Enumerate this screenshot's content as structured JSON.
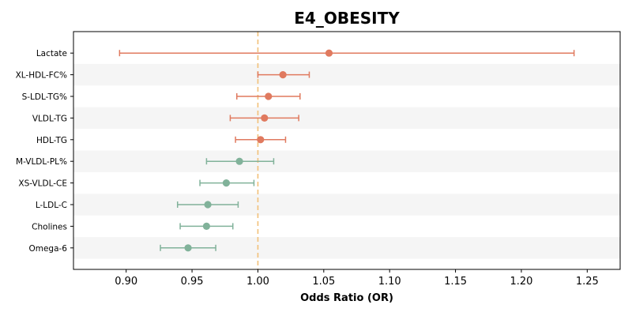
{
  "chart_data": {
    "type": "scatter",
    "subtype": "forest-plot",
    "title": "E4_OBESITY",
    "xlabel": "Odds Ratio (OR)",
    "xlim": [
      0.86,
      1.275
    ],
    "xticks": [
      0.9,
      0.95,
      1.0,
      1.05,
      1.1,
      1.15,
      1.2,
      1.25
    ],
    "xtick_labels": [
      "0.90",
      "0.95",
      "1.00",
      "1.05",
      "1.10",
      "1.15",
      "1.20",
      "1.25"
    ],
    "reference_line": 1.0,
    "grid": false,
    "colors": {
      "increased": "#e07a5f",
      "decreased": "#81b29a",
      "reference": "#f2c078",
      "band": "#f5f5f5"
    },
    "rows": [
      {
        "label": "Lactate",
        "or": 1.054,
        "lo": 0.895,
        "hi": 1.24,
        "direction": "increased"
      },
      {
        "label": "XL-HDL-FC%",
        "or": 1.019,
        "lo": 1.0,
        "hi": 1.039,
        "direction": "increased"
      },
      {
        "label": "S-LDL-TG%",
        "or": 1.008,
        "lo": 0.984,
        "hi": 1.032,
        "direction": "increased"
      },
      {
        "label": "VLDL-TG",
        "or": 1.005,
        "lo": 0.979,
        "hi": 1.031,
        "direction": "increased"
      },
      {
        "label": "HDL-TG",
        "or": 1.002,
        "lo": 0.983,
        "hi": 1.021,
        "direction": "increased"
      },
      {
        "label": "M-VLDL-PL%",
        "or": 0.986,
        "lo": 0.961,
        "hi": 1.012,
        "direction": "decreased"
      },
      {
        "label": "XS-VLDL-CE",
        "or": 0.976,
        "lo": 0.956,
        "hi": 0.997,
        "direction": "decreased"
      },
      {
        "label": "L-LDL-C",
        "or": 0.962,
        "lo": 0.939,
        "hi": 0.985,
        "direction": "decreased"
      },
      {
        "label": "Cholines",
        "or": 0.961,
        "lo": 0.941,
        "hi": 0.981,
        "direction": "decreased"
      },
      {
        "label": "Omega-6",
        "or": 0.947,
        "lo": 0.926,
        "hi": 0.968,
        "direction": "decreased"
      }
    ]
  }
}
